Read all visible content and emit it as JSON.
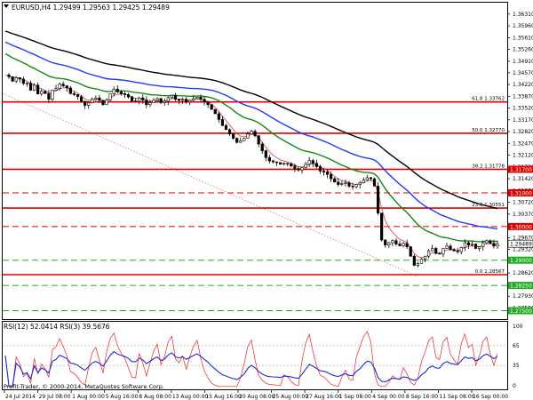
{
  "symbol_header": "EURUSD,H4  1.29499 1.29563 1.29425 1.29489",
  "rsi_header": "RSI(12) 52.0414  RSI(3) 39.5676",
  "copyright": "Profit-Trader, © 2000-2014, MetaQuotes Software Corp.",
  "colors": {
    "candles": "#000000",
    "ma_fast": "#d9534f",
    "ma_green": "#138a13",
    "ma_blue": "#1e3cff",
    "ma_black": "#000000",
    "resistance": "#dd0000",
    "support": "#22aa22",
    "rsi_fast": "#ee2222",
    "rsi_slow": "#1a2bdd"
  },
  "chart_data": {
    "type": "candlestick",
    "ylim": [
      1.2725,
      1.3665
    ],
    "y_ticks": [
      "1.36310",
      "1.35960",
      "1.35610",
      "1.35260",
      "1.34910",
      "1.34570",
      "1.34220",
      "1.33870",
      "1.33520",
      "1.33170",
      "1.32820",
      "1.32470",
      "1.32120",
      "1.31770",
      "1.31420",
      "1.31070",
      "1.30720",
      "1.30370",
      "1.30020",
      "1.29670",
      "1.29320",
      "1.28970",
      "1.28620",
      "1.28280",
      "1.27930",
      "1.27580"
    ],
    "x_labels": [
      "24 Jul 2014",
      "29 Jul 08:00",
      "1 Aug 00:00",
      "5 Aug 16:00",
      "8 Aug 08:00",
      "13 Aug 00:00",
      "15 Aug 16:00",
      "20 Aug 08:00",
      "25 Aug 00:00",
      "27 Aug 16:00",
      "1 Sep 08:00",
      "4 Sep 00:00",
      "8 Sep 16:00",
      "11 Sep 08:00",
      "16 Sep 00:00"
    ],
    "current_price": "1.29489",
    "levels": [
      {
        "price": 1.337,
        "style": "solid",
        "color": "red",
        "fib_label": "61.8 1.33762"
      },
      {
        "price": 1.3277,
        "style": "solid",
        "color": "red",
        "fib_label": "50.0 1.32770"
      },
      {
        "price": 1.317,
        "style": "solid",
        "color": "red",
        "fib_label": "38.2 1.31778",
        "tag": "1.31700"
      },
      {
        "price": 1.31,
        "style": "dashed",
        "color": "red",
        "tag": "1.31000"
      },
      {
        "price": 1.3055,
        "style": "solid",
        "color": "red",
        "fib_label": "23.6 1.30551"
      },
      {
        "price": 1.3,
        "style": "dashed",
        "color": "red",
        "tag": "1.30000"
      },
      {
        "price": 1.29,
        "style": "dashed",
        "color": "green",
        "tag": "1.29000"
      },
      {
        "price": 1.2857,
        "style": "solid",
        "color": "red",
        "fib_label": "0.0 1.28567"
      },
      {
        "price": 1.2825,
        "style": "dashed",
        "color": "green",
        "tag": "1.28250"
      },
      {
        "price": 1.275,
        "style": "dashed",
        "color": "green",
        "tag": "1.27500"
      }
    ],
    "close_series": [
      1.345,
      1.3445,
      1.3432,
      1.3442,
      1.3438,
      1.3425,
      1.3426,
      1.3405,
      1.342,
      1.3394,
      1.3402,
      1.3395,
      1.3378,
      1.3405,
      1.341,
      1.3423,
      1.3418,
      1.3412,
      1.3395,
      1.3392,
      1.3386,
      1.3372,
      1.336,
      1.3368,
      1.3378,
      1.3382,
      1.3375,
      1.3362,
      1.3376,
      1.3394,
      1.3408,
      1.34,
      1.3395,
      1.3392,
      1.3385,
      1.3373,
      1.3372,
      1.3382,
      1.3376,
      1.3362,
      1.3368,
      1.3375,
      1.338,
      1.3368,
      1.3372,
      1.3383,
      1.339,
      1.3378,
      1.3375,
      1.3378,
      1.337,
      1.3375,
      1.338,
      1.3384,
      1.3378,
      1.337,
      1.3362,
      1.3348,
      1.3335,
      1.3318,
      1.33,
      1.3288,
      1.3275,
      1.3262,
      1.325,
      1.3255,
      1.3262,
      1.3275,
      1.3283,
      1.327,
      1.3245,
      1.3225,
      1.3205,
      1.3195,
      1.3192,
      1.319,
      1.3185,
      1.3188,
      1.3186,
      1.318,
      1.3172,
      1.3168,
      1.3175,
      1.3185,
      1.3196,
      1.3188,
      1.3178,
      1.3165,
      1.3162,
      1.3155,
      1.3142,
      1.3132,
      1.3125,
      1.3128,
      1.313,
      1.312,
      1.3118,
      1.3125,
      1.313,
      1.3138,
      1.3145,
      1.3142,
      1.312,
      1.304,
      1.296,
      1.2945,
      1.2952,
      1.2958,
      1.2948,
      1.2943,
      1.295,
      1.294,
      1.2912,
      1.2885,
      1.289,
      1.2903,
      1.2912,
      1.2928,
      1.2935,
      1.292,
      1.2918,
      1.2935,
      1.2942,
      1.2932,
      1.2928,
      1.2925,
      1.2938,
      1.2952,
      1.2945,
      1.2948,
      1.2935,
      1.294,
      1.2952,
      1.2958,
      1.295,
      1.2942,
      1.2948
    ],
    "rsi": {
      "levels": [
        100,
        65,
        35,
        0
      ],
      "series": [
        {
          "name": "RSI(12)",
          "value": "52.0414"
        },
        {
          "name": "RSI(3)",
          "value": "39.5676"
        }
      ]
    }
  }
}
